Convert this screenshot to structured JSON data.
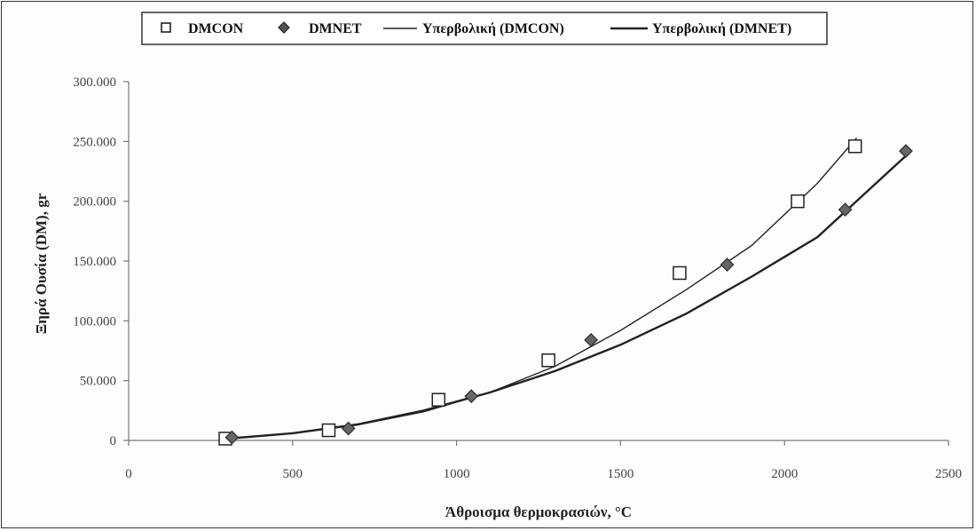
{
  "chart_data": {
    "type": "scatter",
    "xlabel": "Άθροισμα θερμοκρασιών, °C",
    "ylabel": "Ξηρά Ουσία (DM), gr",
    "xlim": [
      0,
      2500
    ],
    "ylim": [
      0,
      300000
    ],
    "x_ticks": [
      0,
      500,
      1000,
      1500,
      2000,
      2500
    ],
    "y_ticks": [
      0,
      50000,
      100000,
      150000,
      200000,
      250000,
      300000
    ],
    "x_tick_labels": [
      "0",
      "500",
      "1000",
      "1500",
      "2000",
      "2500"
    ],
    "y_tick_labels": [
      "0",
      "50.000",
      "100.000",
      "150.000",
      "200.000",
      "250.000",
      "300.000"
    ],
    "grid": false,
    "legend_position": "top",
    "series": [
      {
        "name": "DMCON",
        "kind": "scatter",
        "marker": "square",
        "color": "#222222",
        "x": [
          295,
          610,
          945,
          1280,
          1680,
          2040,
          2215
        ],
        "y": [
          1500,
          8500,
          34000,
          67000,
          140000,
          200000,
          246000
        ]
      },
      {
        "name": "DMNET",
        "kind": "scatter",
        "marker": "diamond",
        "color": "#333333",
        "x": [
          315,
          670,
          1045,
          1410,
          1825,
          2185,
          2370
        ],
        "y": [
          2500,
          10000,
          37000,
          84000,
          147000,
          193000,
          242000
        ]
      },
      {
        "name": "Υπερβολική (DMCON)",
        "kind": "line",
        "color": "#222222",
        "stroke": "thin",
        "x": [
          300,
          500,
          700,
          900,
          1100,
          1300,
          1500,
          1700,
          1900,
          2100,
          2220
        ],
        "y": [
          1500,
          6000,
          13000,
          24000,
          40000,
          62000,
          92000,
          126000,
          163000,
          215000,
          253000
        ]
      },
      {
        "name": "Υπερβολική (DMNET)",
        "kind": "line",
        "color": "#222222",
        "stroke": "thick",
        "x": [
          300,
          500,
          700,
          900,
          1100,
          1300,
          1500,
          1700,
          1900,
          2100,
          2370
        ],
        "y": [
          1500,
          6000,
          13500,
          25000,
          40000,
          58000,
          80000,
          106000,
          137000,
          170000,
          238000
        ]
      }
    ]
  }
}
